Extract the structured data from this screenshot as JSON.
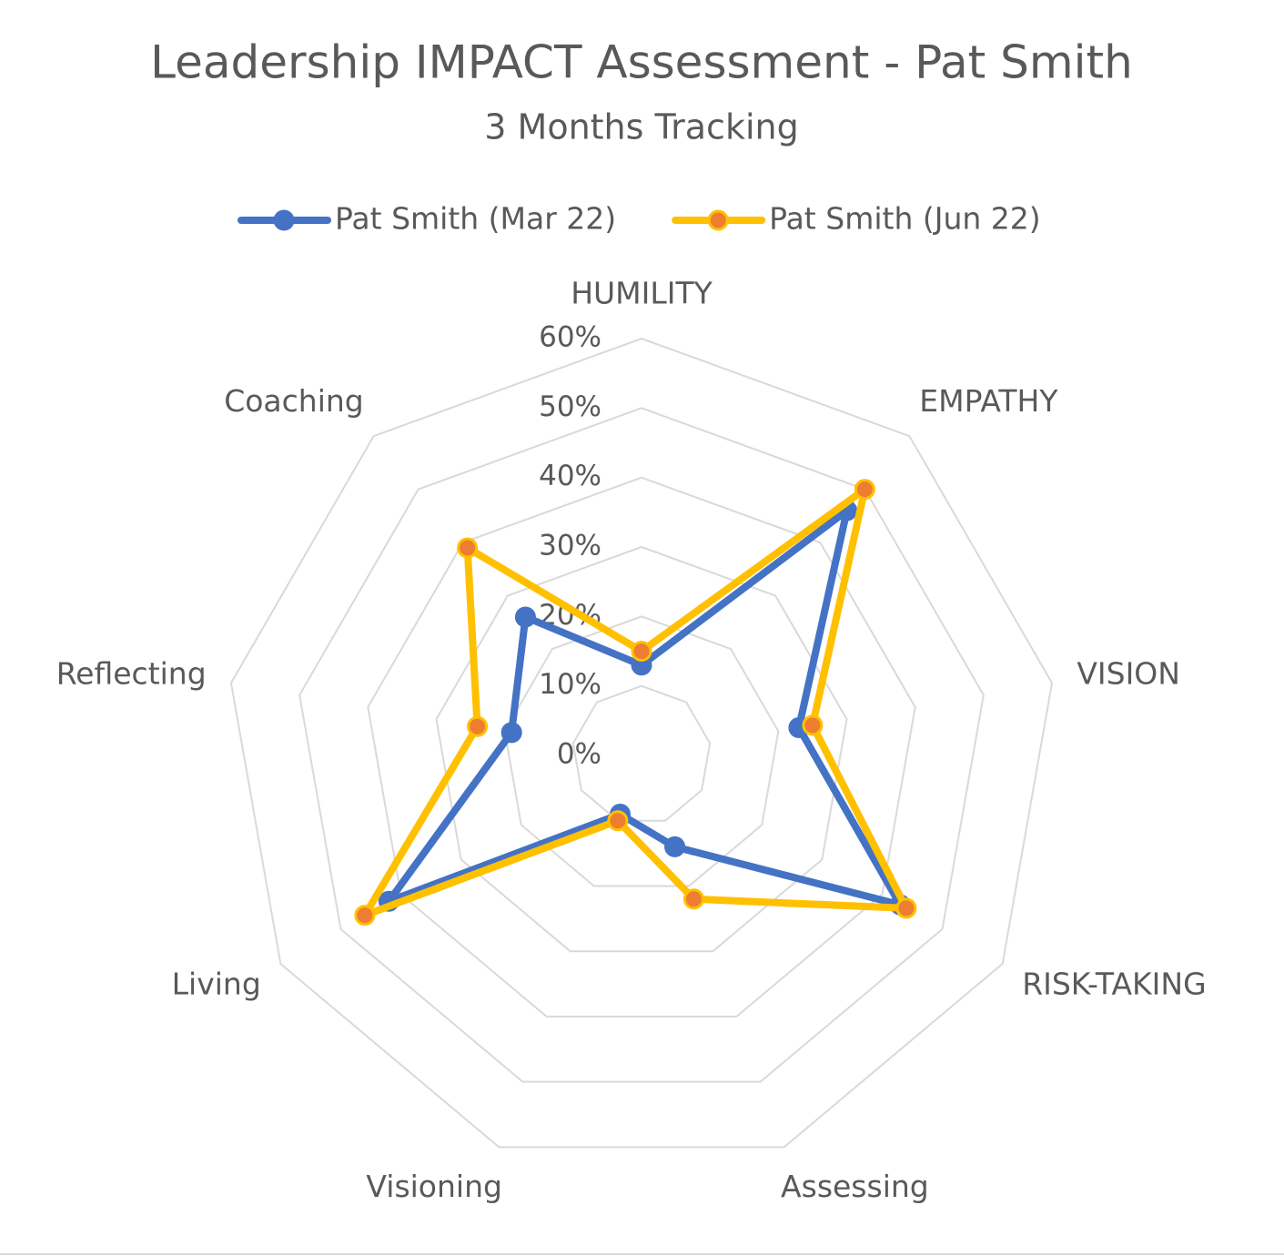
{
  "chart_data": {
    "type": "radar",
    "title": "Leadership IMPACT Assessment - Pat Smith",
    "subtitle": "3 Months Tracking",
    "categories": [
      "HUMILITY",
      "EMPATHY",
      "VISION",
      "RISK-TAKING",
      "Assessing",
      "Visioning",
      "Living",
      "Reflecting",
      "Coaching"
    ],
    "series": [
      {
        "name": "Pat Smith (Mar 22)",
        "color": "#4472c4",
        "marker_color": "#4472c4",
        "values": [
          13,
          46,
          23,
          43,
          14,
          9,
          42,
          19,
          26
        ]
      },
      {
        "name": "Pat Smith (Jun 22)",
        "color": "#ffc000",
        "marker_color": "#ed7d31",
        "values": [
          15,
          50,
          25,
          44,
          22,
          10,
          46,
          24,
          39
        ]
      }
    ],
    "ylim": [
      0,
      60
    ],
    "yticks": [
      {
        "value": 0,
        "label": "0%"
      },
      {
        "value": 10,
        "label": "10%"
      },
      {
        "value": 20,
        "label": "20%"
      },
      {
        "value": 30,
        "label": "30%"
      },
      {
        "value": 40,
        "label": "40%"
      },
      {
        "value": 50,
        "label": "50%"
      },
      {
        "value": 60,
        "label": "60%"
      }
    ],
    "grid": true,
    "legend": "top"
  }
}
